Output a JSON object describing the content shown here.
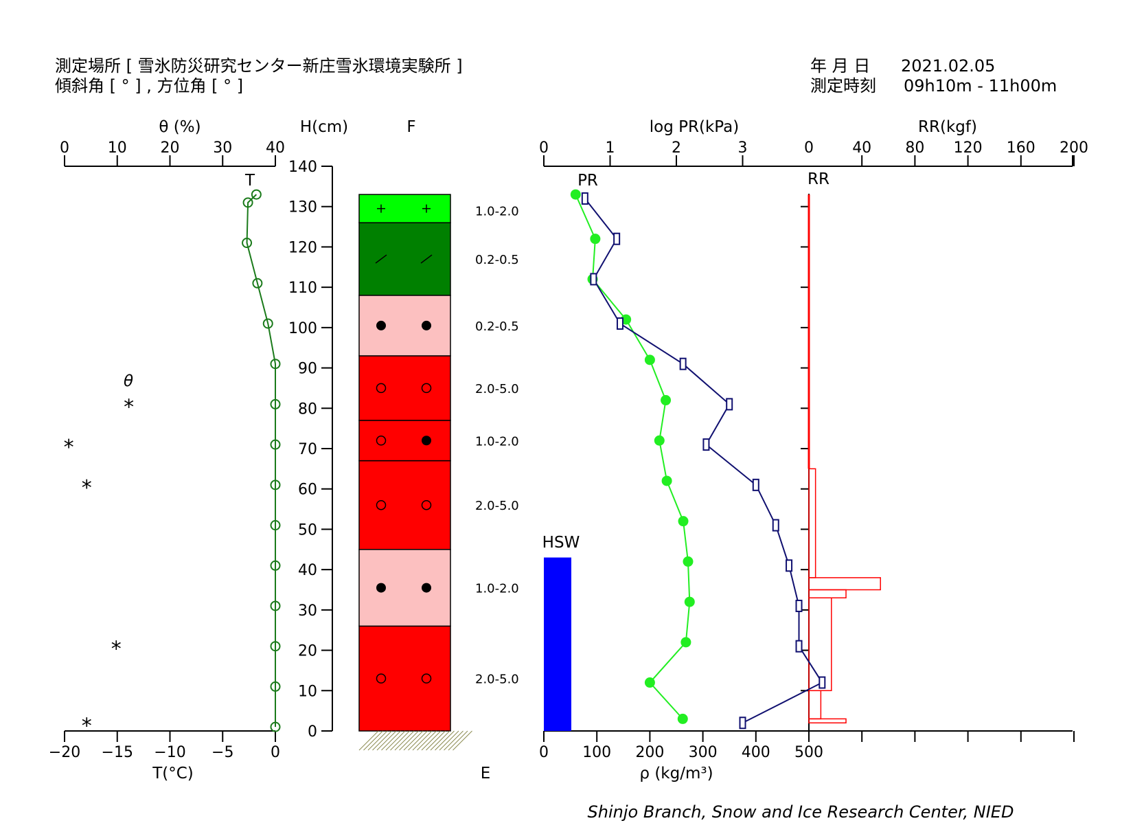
{
  "header": {
    "location_label": "測定場所 [ 雪氷防災研究センター新庄雪氷環境実験所 ]",
    "angle_label": "傾斜角 [ ° ] , 方位角 [ ° ]",
    "date_label": "年 月 日",
    "date_value": "2021.02.05",
    "time_label": "測定時刻",
    "time_value": "09h10m - 11h00m"
  },
  "credit": "Shinjo Branch, Snow and Ice Research Center, NIED",
  "chart_data": [
    {
      "type": "line",
      "panel": "temperature-moisture",
      "top_axis_title": "θ (%)",
      "top_ticks": [
        "0",
        "10",
        "20",
        "30",
        "40"
      ],
      "bottom_axis_title": "T(°C)",
      "bottom_ticks": [
        "−20",
        "−15",
        "−10",
        "−5",
        "0"
      ],
      "xlim_top": [
        0,
        40
      ],
      "xlim_bottom": [
        -20,
        0
      ],
      "series_T_label": "T",
      "series_theta_label": "θ",
      "series_T": {
        "height_cm": [
          133,
          131,
          121,
          111,
          101,
          91,
          81,
          71,
          61,
          51,
          41,
          31,
          21,
          11,
          1
        ],
        "T_C": [
          -1.8,
          -2.6,
          -2.7,
          -1.7,
          -0.7,
          0,
          0,
          0,
          0,
          0,
          0,
          0,
          0,
          0,
          0
        ]
      },
      "series_theta": {
        "height_cm": [
          81,
          71,
          61,
          21,
          2
        ],
        "theta_pct": [
          12.2,
          0.8,
          4.2,
          9.8,
          4.2
        ]
      }
    },
    {
      "type": "table",
      "panel": "stratigraphy",
      "height_axis_title": "H(cm)",
      "height_ticks": [
        "0",
        "10",
        "20",
        "30",
        "40",
        "50",
        "60",
        "70",
        "80",
        "90",
        "100",
        "110",
        "120",
        "130",
        "140"
      ],
      "ylim": [
        0,
        140
      ],
      "column_title_F": "F",
      "column_title_E": "E",
      "layers": [
        {
          "bottom": 0,
          "top": 26,
          "color": "#ff0000",
          "symbols": [
            "ring",
            "ring"
          ],
          "grain": "2.0-5.0",
          "grain_label_h": 13
        },
        {
          "bottom": 26,
          "top": 45,
          "color": "#fcc0c0",
          "symbols": [
            "dot",
            "dot"
          ],
          "grain": "1.0-2.0",
          "grain_label_h": 35.5
        },
        {
          "bottom": 45,
          "top": 67,
          "color": "#ff0000",
          "symbols": [
            "ring",
            "ring"
          ],
          "grain": "2.0-5.0",
          "grain_label_h": 56
        },
        {
          "bottom": 67,
          "top": 77,
          "color": "#ff0000",
          "symbols": [
            "ring",
            "dot"
          ],
          "grain": "1.0-2.0",
          "grain_label_h": 72
        },
        {
          "bottom": 77,
          "top": 93,
          "color": "#ff0000",
          "symbols": [
            "ring",
            "ring"
          ],
          "grain": "2.0-5.0",
          "grain_label_h": 85
        },
        {
          "bottom": 93,
          "top": 108,
          "color": "#fcc0c0",
          "symbols": [
            "dot",
            "dot"
          ],
          "grain": "0.2-0.5",
          "grain_label_h": 100.5
        },
        {
          "bottom": 108,
          "top": 126,
          "color": "#008000",
          "symbols": [
            "slash",
            "slash"
          ],
          "grain": "0.2-0.5",
          "grain_label_h": 117
        },
        {
          "bottom": 126,
          "top": 133,
          "color": "#00ff00",
          "symbols": [
            "plus",
            "plus"
          ],
          "grain": "1.0-2.0",
          "grain_label_h": 129
        }
      ]
    },
    {
      "type": "line",
      "panel": "density-hardness",
      "top_axis_title_PR": "log PR(kPa)",
      "top_ticks_PR": [
        "0",
        "1",
        "2",
        "3"
      ],
      "xlim_PR": [
        0,
        4
      ],
      "top_axis_title_RR": "RR(kgf)",
      "top_ticks_RR": [
        "0",
        "40",
        "80",
        "120",
        "160",
        "200"
      ],
      "xlim_RR": [
        0,
        200
      ],
      "bottom_axis_title": "ρ (kg/m³)",
      "bottom_ticks_rho": [
        "0",
        "100",
        "200",
        "300",
        "400",
        "500"
      ],
      "xlim_rho": [
        0,
        500
      ],
      "series_PR_label": "PR",
      "series_RR_label": "RR",
      "series_HSW_label": "HSW",
      "series_rho": {
        "height_cm": [
          133,
          122,
          112,
          102,
          92,
          82,
          72,
          62,
          52,
          42,
          32,
          22,
          12,
          3
        ],
        "rho": [
          60,
          97,
          92,
          155,
          200,
          230,
          218,
          232,
          263,
          272,
          275,
          268,
          200,
          262
        ]
      },
      "series_PR": {
        "height_cm": [
          132,
          122,
          112,
          101,
          91,
          81,
          71,
          61,
          51,
          41,
          31,
          21,
          12,
          2
        ],
        "log_PR": [
          0.62,
          1.1,
          0.75,
          1.15,
          2.1,
          2.8,
          2.45,
          3.2,
          3.5,
          3.7,
          3.85,
          3.85,
          4.2,
          3.0
        ]
      },
      "series_RR": {
        "bands": [
          {
            "bottom": 0,
            "top": 2,
            "rr": 0
          },
          {
            "bottom": 2,
            "top": 3,
            "rr": 28
          },
          {
            "bottom": 3,
            "top": 10,
            "rr": 9
          },
          {
            "bottom": 10,
            "top": 33,
            "rr": 17
          },
          {
            "bottom": 33,
            "top": 35,
            "rr": 28
          },
          {
            "bottom": 35,
            "top": 38,
            "rr": 54
          },
          {
            "bottom": 38,
            "top": 65,
            "rr": 5
          },
          {
            "bottom": 65,
            "top": 133,
            "rr": 0
          }
        ]
      },
      "hsw_mm": 43
    }
  ]
}
